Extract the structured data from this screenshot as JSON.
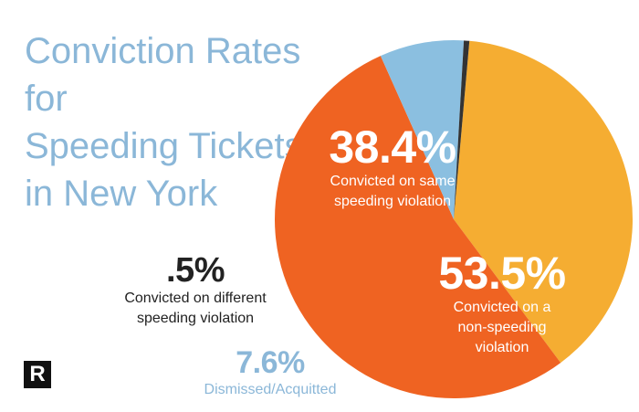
{
  "chart_data": {
    "type": "pie",
    "title": "Conviction Rates for Speeding Tickets in New York",
    "title_lines": [
      "Conviction Rates for",
      "Speeding Tickets",
      "in New York"
    ],
    "slices": [
      {
        "label": "Convicted on same speeding violation",
        "value": 38.4,
        "display": "38.4%",
        "color": "#f5ad32"
      },
      {
        "label": "Convicted on a non-speeding violation",
        "value": 53.5,
        "display": "53.5%",
        "color": "#ef6322"
      },
      {
        "label": "Dismissed/Acquitted",
        "value": 7.6,
        "display": "7.6%",
        "color": "#8bbfe0"
      },
      {
        "label": "Convicted on different speeding violation",
        "value": 0.5,
        "display": ".5%",
        "color": "#333333"
      }
    ],
    "slice_labels": {
      "same": {
        "pct": "38.4%",
        "line1": "Convicted on same",
        "line2": "speeding violation"
      },
      "nonspeeding": {
        "pct": "53.5%",
        "line1": "Convicted on a",
        "line2": "non-speeding",
        "line3": "violation"
      },
      "different": {
        "pct": ".5%",
        "line1": "Convicted on different",
        "line2": "speeding violation"
      },
      "dismissed": {
        "pct": "7.6%",
        "line1": "Dismissed/Acquitted"
      }
    },
    "legend": "none"
  },
  "logo": {
    "letter": "R"
  }
}
